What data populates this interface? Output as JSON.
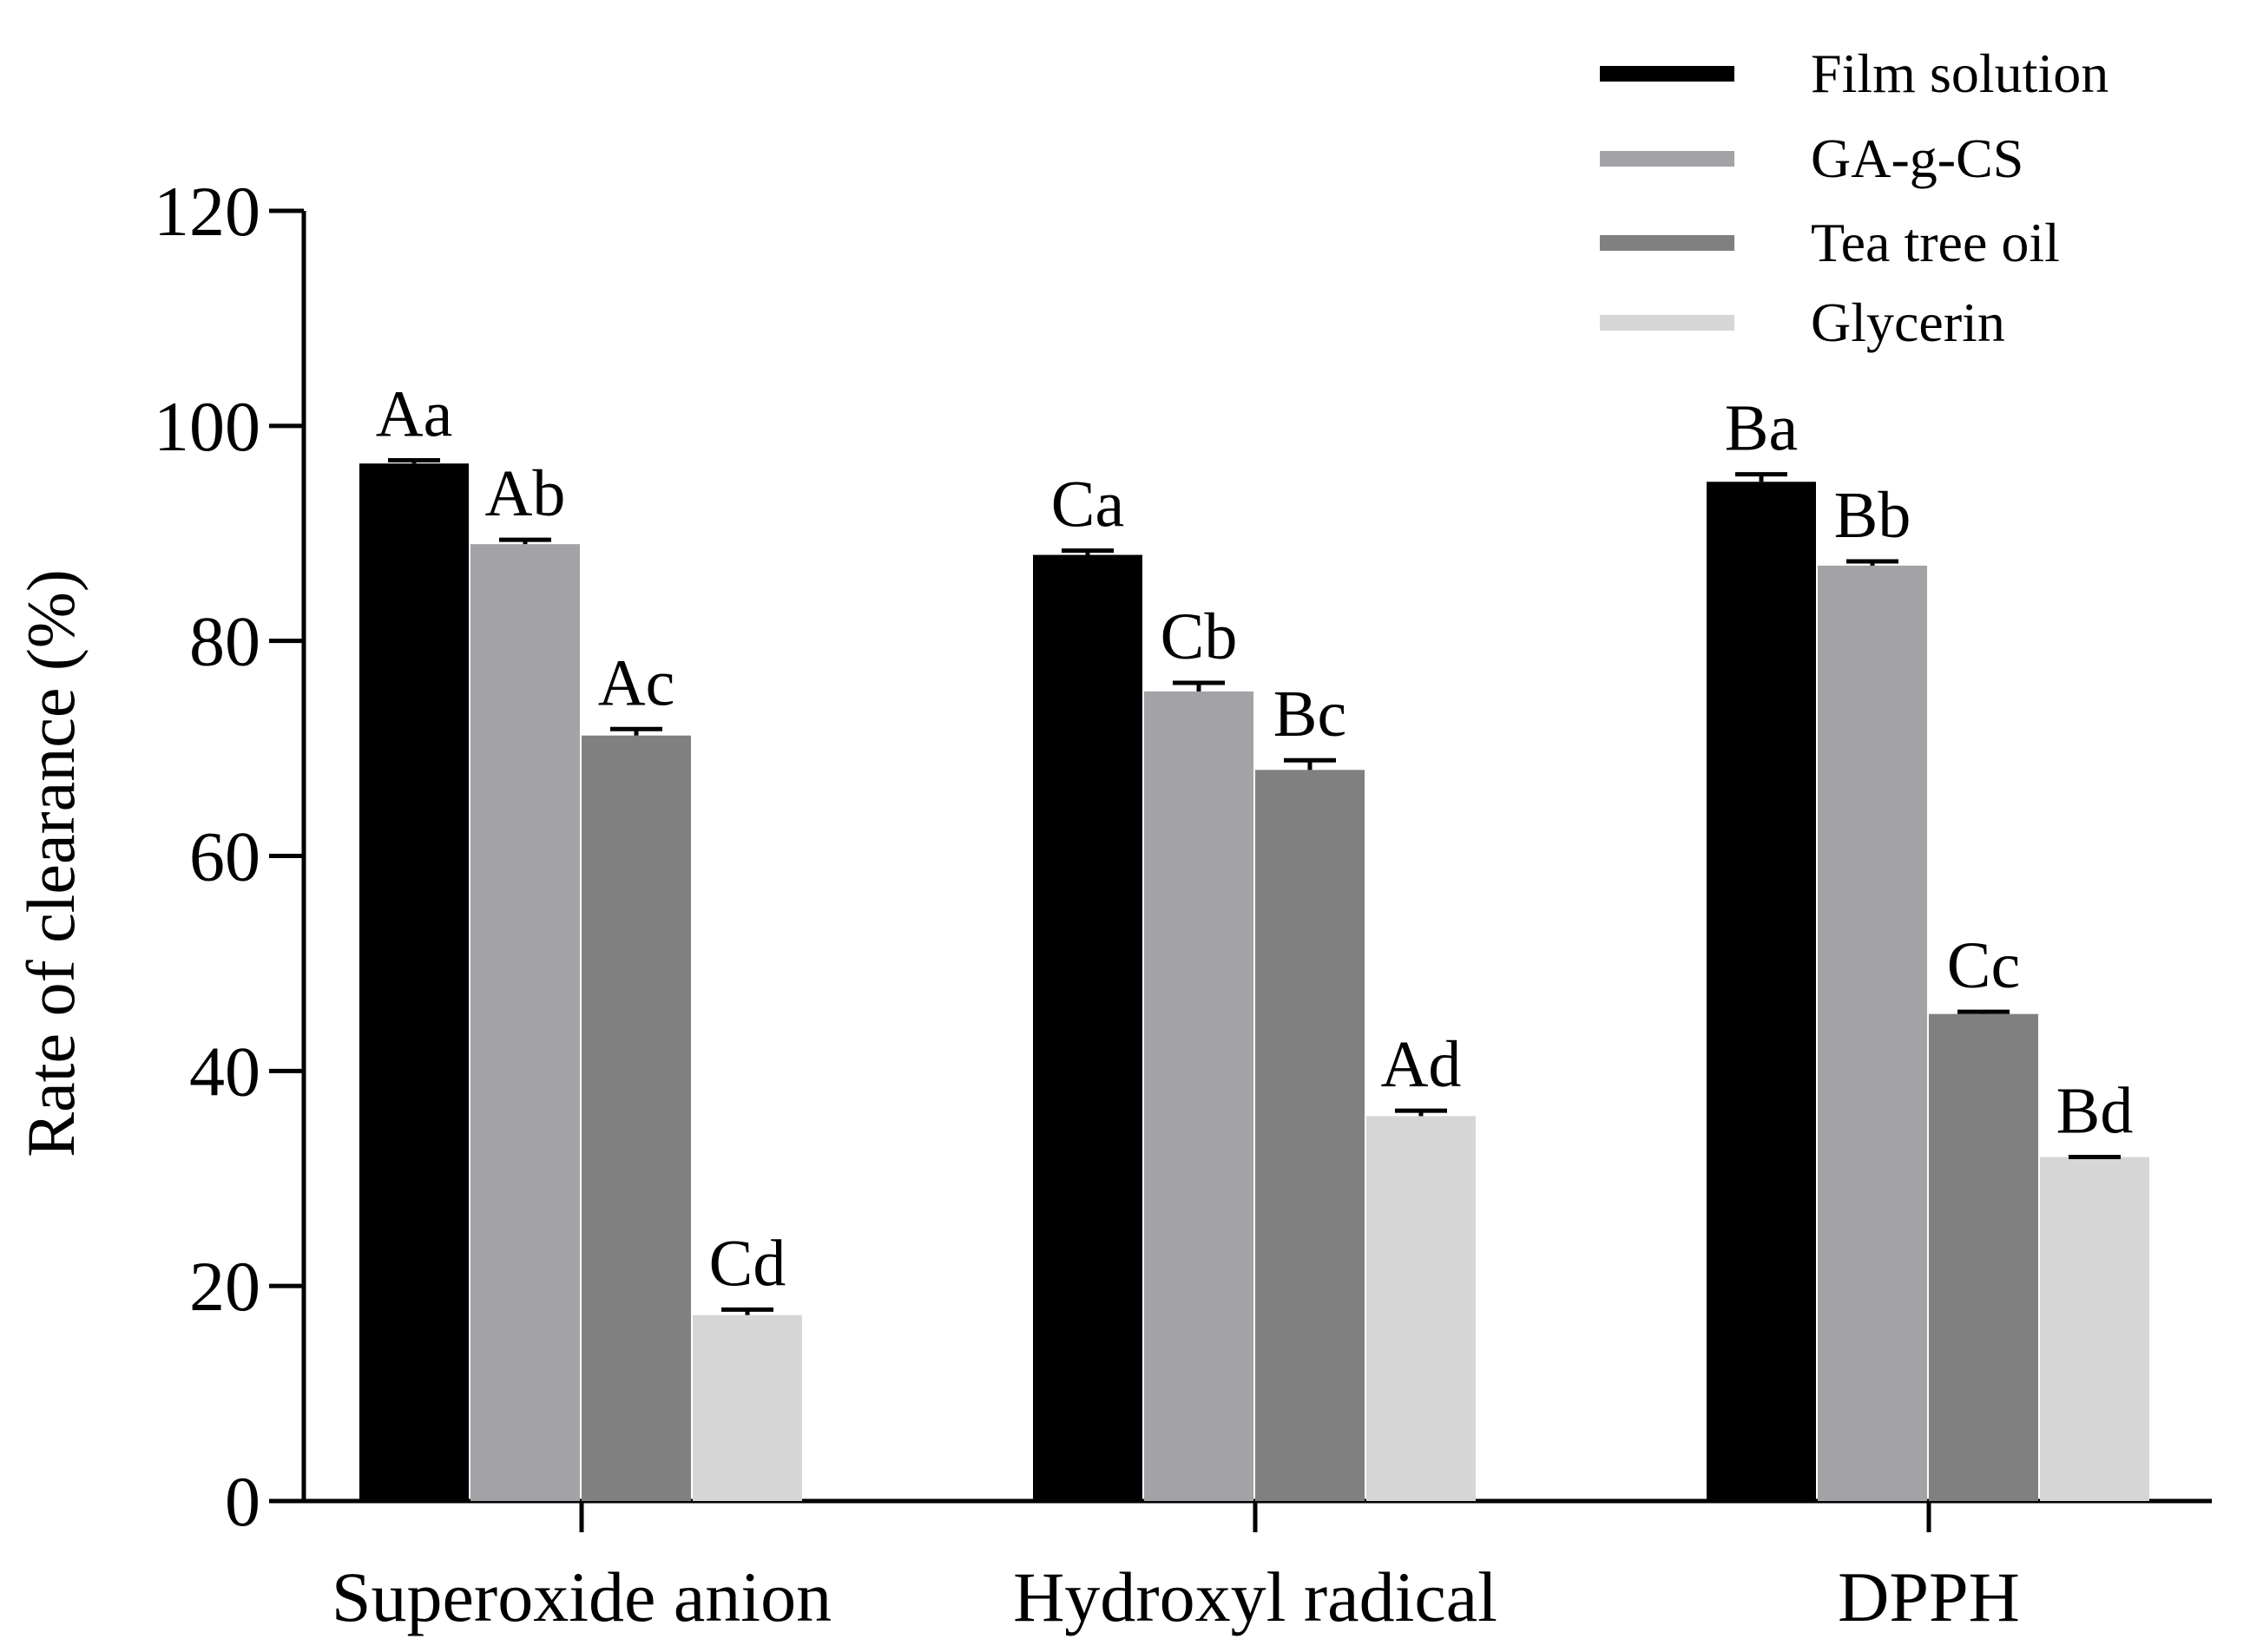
{
  "chart_data": {
    "type": "bar",
    "title": "",
    "xlabel": "",
    "ylabel": "Rate of clearance (%)",
    "ylim": [
      0,
      120
    ],
    "yticks": [
      0,
      20,
      40,
      60,
      80,
      100,
      120
    ],
    "categories": [
      "Superoxide anion",
      "Hydroxyl radical",
      "DPPH"
    ],
    "legend_position": "top-right",
    "grid": false,
    "series": [
      {
        "name": "Film solution",
        "color": "#000000",
        "values": [
          96.5,
          88.0,
          94.8
        ],
        "errors": [
          0.3,
          0.4,
          0.7
        ],
        "labels": [
          "Aa",
          "Ca",
          "Ba"
        ]
      },
      {
        "name": "GA-g-CS",
        "color": "#a3a3a7",
        "values": [
          89.0,
          75.3,
          87.0
        ],
        "errors": [
          0.4,
          0.8,
          0.4
        ],
        "labels": [
          "Ab",
          "Cb",
          "Bb"
        ]
      },
      {
        "name": "Tea tree oil",
        "color": "#808080",
        "values": [
          71.2,
          68.0,
          45.3
        ],
        "errors": [
          0.6,
          0.9,
          0.2
        ],
        "labels": [
          "Ac",
          "Bc",
          "Cc"
        ]
      },
      {
        "name": "Glycerin",
        "color": "#d6d6d6",
        "values": [
          17.3,
          35.8,
          32.0
        ],
        "errors": [
          0.5,
          0.5,
          0.0
        ],
        "labels": [
          "Cd",
          "Ad",
          "Bd"
        ]
      }
    ]
  }
}
